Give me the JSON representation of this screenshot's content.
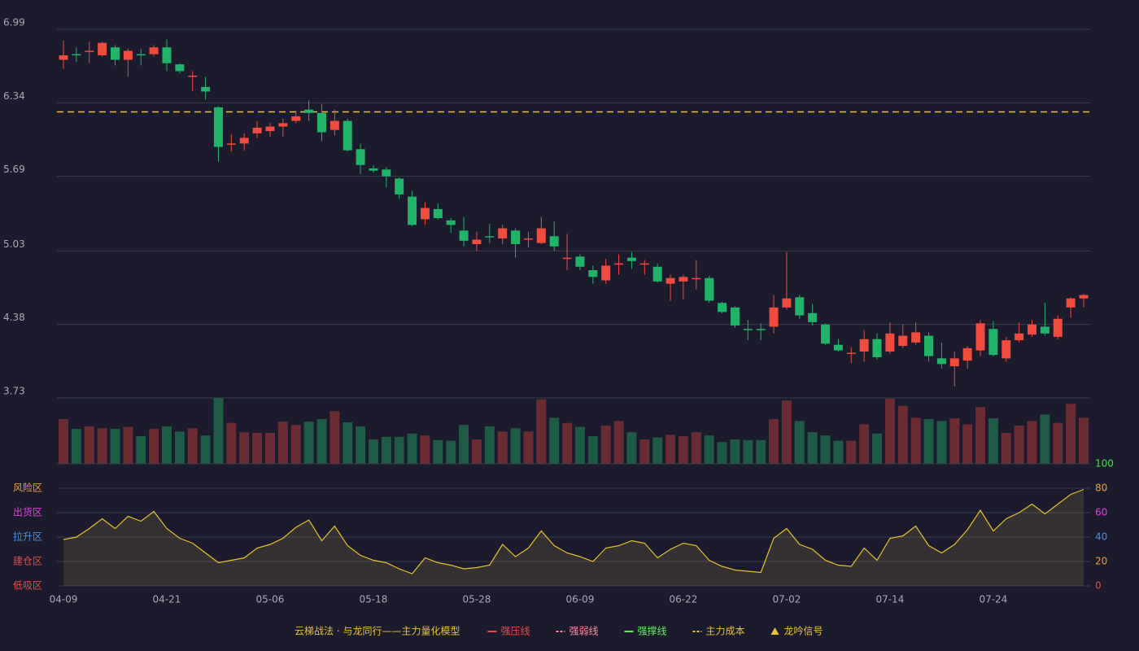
{
  "chart_data": [
    {
      "type": "candlestick",
      "categories": [
        "04-09",
        null,
        null,
        null,
        null,
        null,
        null,
        null,
        "04-21",
        null,
        null,
        null,
        null,
        null,
        null,
        null,
        "05-06",
        null,
        null,
        null,
        null,
        null,
        null,
        null,
        "05-18",
        null,
        null,
        null,
        null,
        null,
        null,
        null,
        "05-28",
        null,
        null,
        null,
        null,
        null,
        null,
        null,
        "06-09",
        null,
        null,
        null,
        null,
        null,
        null,
        null,
        "06-22",
        null,
        null,
        null,
        null,
        null,
        null,
        null,
        "07-02",
        null,
        null,
        null,
        null,
        null,
        null,
        null,
        "07-14",
        null,
        null,
        null,
        null,
        null,
        null,
        null,
        "07-24",
        null,
        null,
        null,
        null,
        null,
        null,
        null
      ],
      "open": [
        6.72,
        6.77,
        6.79,
        6.76,
        6.83,
        6.72,
        6.77,
        6.77,
        6.83,
        6.68,
        6.57,
        6.48,
        6.3,
        5.97,
        5.98,
        6.07,
        6.09,
        6.13,
        6.18,
        6.28,
        6.25,
        6.1,
        6.18,
        5.93,
        5.76,
        5.75,
        5.67,
        5.51,
        5.31,
        5.4,
        5.3,
        5.21,
        5.09,
        5.16,
        5.14,
        5.21,
        5.13,
        5.1,
        5.16,
        4.96,
        4.98,
        4.86,
        4.77,
        4.91,
        4.97,
        4.91,
        4.89,
        4.74,
        4.76,
        4.78,
        4.79,
        4.57,
        4.53,
        4.34,
        4.34,
        4.36,
        4.53,
        4.62,
        4.48,
        4.38,
        4.2,
        4.12,
        4.14,
        4.25,
        4.14,
        4.19,
        4.22,
        4.28,
        4.08,
        4.01,
        4.06,
        4.15,
        4.34,
        4.08,
        4.24,
        4.29,
        4.36,
        4.27,
        4.53,
        4.61
      ],
      "high": [
        6.89,
        6.83,
        6.88,
        6.88,
        6.85,
        6.82,
        6.82,
        6.85,
        6.9,
        6.69,
        6.62,
        6.57,
        6.31,
        6.06,
        6.07,
        6.18,
        6.16,
        6.2,
        6.27,
        6.36,
        6.33,
        6.28,
        6.2,
        5.98,
        5.79,
        5.77,
        5.68,
        5.56,
        5.46,
        5.45,
        5.32,
        5.33,
        5.2,
        5.27,
        5.26,
        5.23,
        5.2,
        5.33,
        5.29,
        5.18,
        5.0,
        4.9,
        4.96,
        5.0,
        5.02,
        4.95,
        4.92,
        4.82,
        4.82,
        4.95,
        4.81,
        4.58,
        4.54,
        4.42,
        4.39,
        4.64,
        5.02,
        4.64,
        4.56,
        4.39,
        4.25,
        4.18,
        4.33,
        4.3,
        4.4,
        4.38,
        4.4,
        4.31,
        4.22,
        4.14,
        4.19,
        4.42,
        4.41,
        4.27,
        4.4,
        4.42,
        4.57,
        4.46,
        4.62,
        4.65
      ],
      "low": [
        6.64,
        6.7,
        6.69,
        6.75,
        6.67,
        6.57,
        6.67,
        6.75,
        6.62,
        6.6,
        6.44,
        6.37,
        5.82,
        5.91,
        5.92,
        6.03,
        6.04,
        6.04,
        6.16,
        6.18,
        6.0,
        6.05,
        5.91,
        5.71,
        5.72,
        5.59,
        5.49,
        5.25,
        5.26,
        5.31,
        5.19,
        5.07,
        5.03,
        5.1,
        5.09,
        4.97,
        5.06,
        5.09,
        5.03,
        4.86,
        4.86,
        4.74,
        4.74,
        4.82,
        4.87,
        4.82,
        4.75,
        4.59,
        4.6,
        4.69,
        4.57,
        4.48,
        4.35,
        4.24,
        4.24,
        4.3,
        4.51,
        4.43,
        4.37,
        4.2,
        4.14,
        4.04,
        4.05,
        4.07,
        4.12,
        4.17,
        4.2,
        4.05,
        3.99,
        3.83,
        3.99,
        4.1,
        4.1,
        4.05,
        4.22,
        4.27,
        4.28,
        4.25,
        4.44,
        4.53
      ],
      "close": [
        6.76,
        6.76,
        6.8,
        6.87,
        6.72,
        6.8,
        6.76,
        6.83,
        6.69,
        6.62,
        6.58,
        6.44,
        5.95,
        5.98,
        6.03,
        6.12,
        6.13,
        6.16,
        6.22,
        6.25,
        6.08,
        6.18,
        5.92,
        5.79,
        5.74,
        5.69,
        5.53,
        5.26,
        5.41,
        5.32,
        5.26,
        5.12,
        5.13,
        5.15,
        5.23,
        5.09,
        5.14,
        5.23,
        5.07,
        4.97,
        4.89,
        4.8,
        4.9,
        4.92,
        4.94,
        4.92,
        4.76,
        4.79,
        4.8,
        4.79,
        4.59,
        4.49,
        4.37,
        4.33,
        4.33,
        4.53,
        4.61,
        4.46,
        4.4,
        4.21,
        4.15,
        4.13,
        4.25,
        4.09,
        4.3,
        4.28,
        4.31,
        4.1,
        4.03,
        4.08,
        4.17,
        4.39,
        4.11,
        4.24,
        4.3,
        4.38,
        4.3,
        4.43,
        4.61,
        4.64
      ],
      "up_color": "#ef4b3f",
      "down_color": "#22b36a",
      "cost_line": 6.26,
      "cost_color": "#e8c23a",
      "ylim": [
        3.73,
        6.99
      ],
      "yticks": [
        6.99,
        6.34,
        5.69,
        5.03,
        4.38,
        3.73
      ],
      "grid": true
    },
    {
      "type": "bar",
      "values": [
        68,
        53,
        57,
        54,
        53,
        56,
        42,
        53,
        57,
        49,
        54,
        43,
        100,
        62,
        48,
        47,
        47,
        64,
        59,
        64,
        68,
        80,
        63,
        57,
        37,
        41,
        41,
        46,
        43,
        36,
        35,
        59,
        37,
        57,
        49,
        54,
        49,
        98,
        70,
        62,
        56,
        42,
        58,
        65,
        48,
        37,
        40,
        44,
        42,
        48,
        43,
        33,
        37,
        36,
        36,
        68,
        96,
        65,
        48,
        43,
        35,
        35,
        60,
        46,
        99,
        88,
        70,
        68,
        65,
        69,
        60,
        86,
        69,
        47,
        58,
        65,
        75,
        62,
        91,
        70
      ],
      "up_color": "#6a2b33",
      "down_color": "#1e5a46",
      "ylim": [
        0,
        100
      ]
    },
    {
      "type": "line",
      "values": [
        38,
        40,
        47,
        55,
        47,
        57,
        53,
        61,
        47,
        39,
        35,
        27,
        19,
        21,
        23,
        31,
        34,
        39,
        48,
        54,
        37,
        49,
        33,
        25,
        21,
        19,
        14,
        10,
        23,
        19,
        17,
        14,
        15,
        17,
        34,
        24,
        31,
        45,
        33,
        27,
        24,
        20,
        31,
        33,
        37,
        35,
        23,
        30,
        35,
        33,
        21,
        16,
        13,
        12,
        11,
        39,
        47,
        34,
        30,
        21,
        17,
        16,
        31,
        21,
        39,
        41,
        49,
        33,
        27,
        34,
        46,
        62,
        45,
        55,
        60,
        67,
        59,
        67,
        75,
        79
      ],
      "color": "#e6c229",
      "ylim": [
        0,
        100
      ],
      "yticks": [
        100,
        80,
        60,
        40,
        20,
        0
      ],
      "tick_colors": [
        "#3ee83e",
        "#f0a030",
        "#e040e0",
        "#4a90e8",
        "#f0a030",
        "#e84a4a"
      ],
      "zones": [
        {
          "label": "风险区",
          "value": 80,
          "color": "#f0a030"
        },
        {
          "label": "出货区",
          "value": 60,
          "color": "#e040e0"
        },
        {
          "label": "拉升区",
          "value": 40,
          "color": "#4a90e8"
        },
        {
          "label": "建仓区",
          "value": 20,
          "color": "#e84a4a"
        },
        {
          "label": "低吸区",
          "value": 0,
          "color": "#e84a4a"
        }
      ],
      "grid": true
    }
  ],
  "legend": {
    "title": "云梯战法 · 与龙同行——主力量化模型",
    "title_color": "#e8c23a",
    "items": [
      {
        "name": "强压线",
        "color": "#ef4b3f",
        "style": "solid"
      },
      {
        "name": "强弱线",
        "color": "#ff8a9a",
        "style": "dashed"
      },
      {
        "name": "强撑线",
        "color": "#5ef05e",
        "style": "solid"
      },
      {
        "name": "主力成本",
        "color": "#e8c23a",
        "style": "dashed"
      },
      {
        "name": "龙吟信号",
        "color": "#e8c23a",
        "style": "triangle"
      }
    ]
  }
}
